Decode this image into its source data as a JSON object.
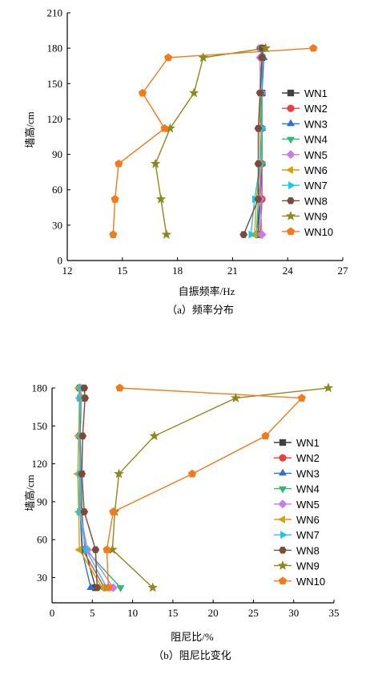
{
  "chart_data": [
    {
      "type": "line",
      "xlabel": "自振频率/Hz",
      "ylabel": "墙高/cm",
      "caption": "（a）频率分布",
      "xlim": [
        12,
        27
      ],
      "ylim": [
        0,
        210
      ],
      "xticks": [
        12,
        15,
        18,
        21,
        24,
        27
      ],
      "yticks": [
        0,
        30,
        60,
        90,
        120,
        150,
        180,
        210
      ],
      "legend_position": "right",
      "y": [
        22,
        52,
        82,
        112,
        142,
        172,
        180
      ],
      "series": [
        {
          "name": "WN1",
          "color": "#404040",
          "marker": "square",
          "values": [
            22.4,
            22.5,
            22.5,
            22.5,
            22.6,
            22.6,
            22.6
          ]
        },
        {
          "name": "WN2",
          "color": "#e8403a",
          "marker": "circle",
          "values": [
            22.5,
            22.6,
            22.6,
            22.6,
            22.6,
            22.6,
            22.5
          ]
        },
        {
          "name": "WN3",
          "color": "#2f6fd4",
          "marker": "triangle",
          "values": [
            22.3,
            22.5,
            22.6,
            22.6,
            22.6,
            22.7,
            22.6
          ]
        },
        {
          "name": "WN4",
          "color": "#2eb872",
          "marker": "tri-down",
          "values": [
            22.3,
            22.4,
            22.6,
            22.6,
            22.5,
            22.6,
            22.6
          ]
        },
        {
          "name": "WN5",
          "color": "#c77de8",
          "marker": "diamond",
          "values": [
            22.6,
            22.5,
            22.5,
            22.5,
            22.5,
            22.5,
            22.6
          ]
        },
        {
          "name": "WN6",
          "color": "#d4a100",
          "marker": "tri-left",
          "values": [
            22.2,
            22.3,
            22.5,
            22.5,
            22.5,
            22.6,
            22.6
          ]
        },
        {
          "name": "WN7",
          "color": "#1ec6e6",
          "marker": "tri-right",
          "values": [
            22.0,
            22.2,
            22.5,
            22.6,
            22.6,
            22.6,
            22.5
          ]
        },
        {
          "name": "WN8",
          "color": "#7b4a3a",
          "marker": "hexagon",
          "values": [
            21.6,
            22.4,
            22.4,
            22.4,
            22.5,
            22.6,
            22.6
          ]
        },
        {
          "name": "WN9",
          "color": "#8a8a1e",
          "marker": "star",
          "values": [
            17.4,
            17.1,
            16.8,
            17.6,
            18.9,
            19.4,
            22.8
          ]
        },
        {
          "name": "WN10",
          "color": "#f47a1a",
          "marker": "pentagon",
          "values": [
            14.5,
            14.6,
            14.8,
            17.3,
            16.1,
            17.5,
            25.4
          ]
        }
      ]
    },
    {
      "type": "line",
      "xlabel": "阻尼比/%",
      "ylabel": "墙高/cm",
      "caption": "（b）阻尼比变化",
      "xlim": [
        0,
        35
      ],
      "ylim": [
        10,
        180
      ],
      "xticks": [
        0,
        5,
        10,
        15,
        20,
        25,
        30,
        35
      ],
      "yticks": [
        30,
        60,
        90,
        120,
        150,
        180
      ],
      "legend_position": "right",
      "y": [
        22,
        52,
        82,
        112,
        142,
        172,
        180
      ],
      "series": [
        {
          "name": "WN1",
          "color": "#404040",
          "marker": "square",
          "values": [
            5.4,
            4.1,
            3.7,
            3.6,
            3.5,
            3.6,
            3.5
          ]
        },
        {
          "name": "WN2",
          "color": "#e8403a",
          "marker": "circle",
          "values": [
            6.5,
            3.8,
            3.5,
            3.6,
            3.4,
            3.5,
            3.4
          ]
        },
        {
          "name": "WN3",
          "color": "#2f6fd4",
          "marker": "triangle",
          "values": [
            4.8,
            3.7,
            3.5,
            3.5,
            3.4,
            3.5,
            3.4
          ]
        },
        {
          "name": "WN4",
          "color": "#2eb872",
          "marker": "tri-down",
          "values": [
            8.5,
            4.2,
            3.6,
            3.6,
            3.4,
            3.6,
            3.4
          ]
        },
        {
          "name": "WN5",
          "color": "#c77de8",
          "marker": "diamond",
          "values": [
            7.6,
            4.4,
            3.5,
            3.5,
            3.4,
            3.5,
            3.5
          ]
        },
        {
          "name": "WN6",
          "color": "#d4a100",
          "marker": "tri-left",
          "values": [
            6.2,
            3.4,
            3.3,
            3.2,
            3.3,
            3.4,
            3.3
          ]
        },
        {
          "name": "WN7",
          "color": "#1ec6e6",
          "marker": "tri-right",
          "values": [
            6.8,
            4.2,
            3.4,
            3.4,
            3.5,
            3.4,
            3.5
          ]
        },
        {
          "name": "WN8",
          "color": "#7b4a3a",
          "marker": "hexagon",
          "values": [
            5.6,
            5.4,
            4.0,
            3.7,
            3.8,
            4.1,
            4.0
          ]
        },
        {
          "name": "WN9",
          "color": "#8a8a1e",
          "marker": "star",
          "values": [
            12.5,
            7.5,
            7.8,
            8.3,
            12.7,
            22.8,
            34.3
          ]
        },
        {
          "name": "WN10",
          "color": "#f47a1a",
          "marker": "pentagon",
          "values": [
            7.0,
            6.8,
            7.6,
            17.4,
            26.5,
            31.0,
            8.4
          ]
        }
      ]
    }
  ]
}
